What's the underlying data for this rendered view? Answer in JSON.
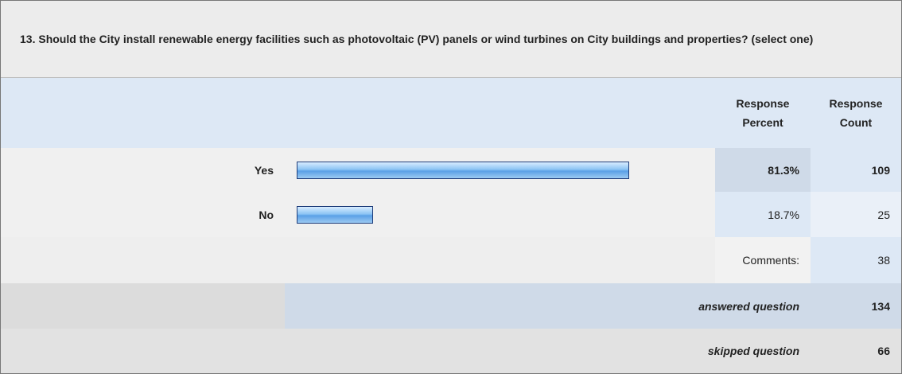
{
  "question": "13. Should the City install renewable energy facilities such as photovoltaic (PV) panels or wind turbines on City buildings and properties? (select one)",
  "headers": [
    "Response Percent",
    "Response Count"
  ],
  "rows": [
    {
      "label": "Yes",
      "value": 81.3,
      "value_label": "81.3%",
      "count": 109
    },
    {
      "label": "No",
      "value": 18.7,
      "value_label": "18.7%",
      "count": 25
    }
  ],
  "comments": {
    "label": "Comments:",
    "count": 38
  },
  "answered": {
    "label": "answered question",
    "count": 134
  },
  "skipped": {
    "label": "skipped question",
    "count": 66
  }
}
